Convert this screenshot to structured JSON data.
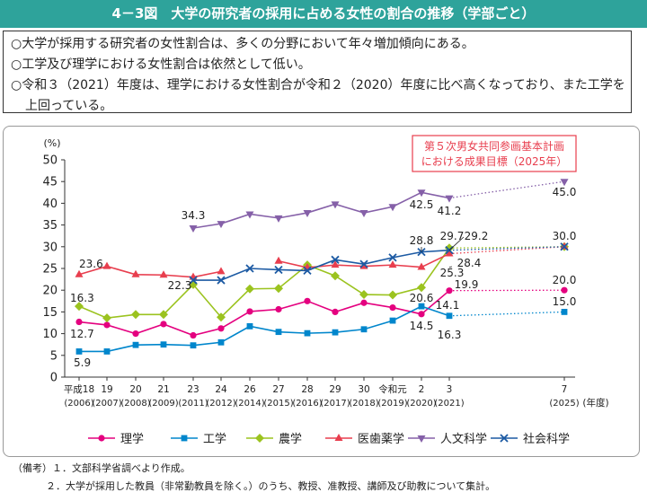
{
  "header": {
    "title": "4－3図　大学の研究者の採用に占める女性の割合の推移（学部ごと）"
  },
  "summary": {
    "bullets": [
      "○大学が採用する研究者の女性割合は、多くの分野において年々増加傾向にある。",
      "○工学及び理学における女性割合は依然として低い。",
      "○令和３（2021）年度は、理学における女性割合が令和２（2020）年度に比べ高くなっており、また工学を上回っている。"
    ]
  },
  "chart_data": {
    "type": "line",
    "ylabel": "(%)",
    "xlabel": "(年度)",
    "ylim": [
      0,
      50
    ],
    "yticks": [
      0,
      5,
      10,
      15,
      20,
      25,
      30,
      35,
      40,
      45,
      50
    ],
    "categories": [
      {
        "era": "平成18",
        "year": "(2006)"
      },
      {
        "era": "19",
        "year": "(2007)"
      },
      {
        "era": "20",
        "year": "(2008)"
      },
      {
        "era": "21",
        "year": "(2009)"
      },
      {
        "era": "23",
        "year": "(2011)"
      },
      {
        "era": "24",
        "year": "(2012)"
      },
      {
        "era": "26",
        "year": "(2014)"
      },
      {
        "era": "27",
        "year": "(2015)"
      },
      {
        "era": "28",
        "year": "(2016)"
      },
      {
        "era": "29",
        "year": "(2017)"
      },
      {
        "era": "30",
        "year": "(2018)"
      },
      {
        "era": "令和元",
        "year": "(2019)"
      },
      {
        "era": "2",
        "year": "(2020)"
      },
      {
        "era": "3",
        "year": "(2021)"
      }
    ],
    "target_category": {
      "era": "7",
      "year": "(2025)"
    },
    "target_box": [
      "第５次男女共同参画基本計画",
      "における成果目標（2025年）"
    ],
    "series": [
      {
        "name": "理学",
        "color": "#e4007f",
        "marker": "circle",
        "values": [
          12.7,
          12.0,
          10.0,
          12.2,
          9.6,
          11.2,
          15.1,
          15.6,
          17.5,
          15.0,
          17.1,
          16.0,
          14.5,
          19.9
        ],
        "target": 20.0
      },
      {
        "name": "工学",
        "color": "#0086cc",
        "marker": "square",
        "values": [
          5.9,
          5.9,
          7.4,
          7.5,
          7.3,
          8.0,
          11.7,
          10.4,
          10.1,
          10.3,
          11.0,
          13.0,
          16.3,
          14.1
        ],
        "target": 15.0
      },
      {
        "name": "農学",
        "color": "#9bc31f",
        "marker": "diamond",
        "values": [
          16.3,
          13.6,
          14.4,
          14.4,
          21.3,
          13.8,
          20.3,
          20.4,
          25.8,
          23.3,
          19.0,
          18.9,
          20.6,
          29.7
        ],
        "target": 30.0
      },
      {
        "name": "医歯薬学",
        "color": "#e83e4e",
        "marker": "triangle",
        "values": [
          23.6,
          25.5,
          23.6,
          23.5,
          23.0,
          24.3,
          null,
          26.7,
          25.2,
          25.8,
          25.5,
          25.8,
          25.3,
          28.4
        ],
        "target": 30.0
      },
      {
        "name": "人文科学",
        "color": "#8560a8",
        "marker": "triangle-down",
        "values": [
          null,
          null,
          null,
          null,
          34.3,
          35.3,
          37.5,
          36.6,
          37.8,
          39.8,
          37.8,
          39.2,
          42.5,
          41.2
        ],
        "target": 45.0
      },
      {
        "name": "社会科学",
        "color": "#1c5aa3",
        "marker": "x",
        "values": [
          null,
          null,
          null,
          null,
          22.3,
          22.3,
          25.0,
          24.7,
          24.5,
          27.0,
          26.0,
          27.5,
          28.8,
          29.2
        ],
        "target": 30.0
      }
    ],
    "data_labels": [
      "23.6",
      "16.3",
      "12.7",
      "5.9",
      "34.3",
      "22.3",
      "42.5",
      "41.2",
      "28.8",
      "29.7",
      "29.2",
      "25.3",
      "28.4",
      "20.6",
      "19.9",
      "14.1",
      "14.5",
      "16.3",
      "45.0",
      "30.0",
      "20.0",
      "15.0"
    ]
  },
  "notes": [
    "（備考）１．文部科学省調べより作成。",
    "２．大学が採用した教員（非常勤教員を除く。）のうち、教授、准教授、講師及び助教について集計。"
  ]
}
